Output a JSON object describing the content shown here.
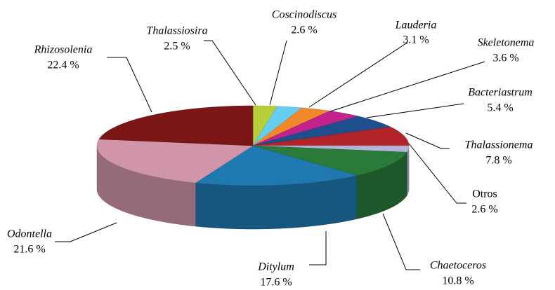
{
  "chart_data": {
    "type": "pie3d",
    "categories": [
      "Thalassiosira",
      "Coscinodiscus",
      "Lauderia",
      "Skeletonema",
      "Bacteriastrum",
      "Thalassionema",
      "Otros",
      "Chaetoceros",
      "Ditylum",
      "Odontella",
      "Rhizosolenia"
    ],
    "values": [
      2.5,
      2.6,
      3.1,
      3.6,
      5.4,
      7.8,
      2.6,
      10.8,
      17.6,
      21.6,
      22.4
    ],
    "value_labels": [
      "2.5 %",
      "2.6 %",
      "3.1 %",
      "3.6 %",
      "5.4 %",
      "7.8 %",
      "2.6 %",
      "10.8 %",
      "17.6 %",
      "21.6 %",
      "22.4 %"
    ],
    "colors": [
      "#b5cf3a",
      "#66ccf0",
      "#f0892a",
      "#c2228a",
      "#1f4e8c",
      "#b0242a",
      "#b4b4d8",
      "#2a7a3a",
      "#1f78b0",
      "#d095a8",
      "#7a1616"
    ]
  }
}
